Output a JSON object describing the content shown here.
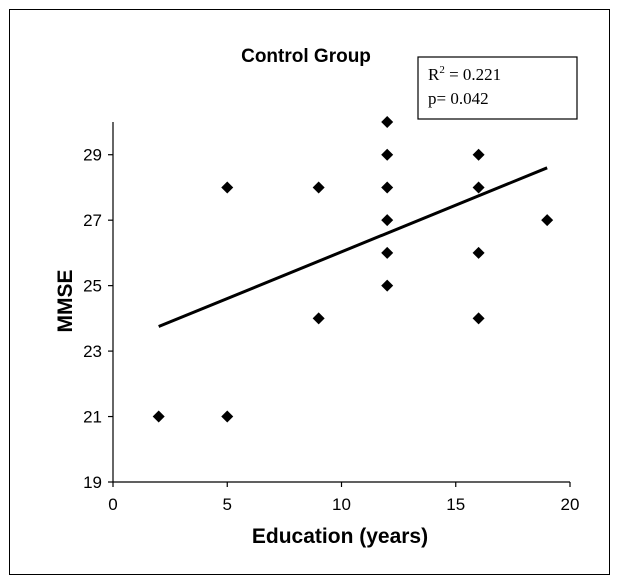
{
  "chart_data": {
    "type": "scatter",
    "title": "Control Group",
    "xlabel": "Education (years)",
    "ylabel": "MMSE",
    "xlim": [
      0,
      20
    ],
    "ylim": [
      19,
      30
    ],
    "xticks": [
      "0",
      "5",
      "10",
      "15",
      "20"
    ],
    "yticks": [
      "19",
      "21",
      "23",
      "25",
      "27",
      "29"
    ],
    "points": [
      {
        "x": 2,
        "y": 21
      },
      {
        "x": 5,
        "y": 21
      },
      {
        "x": 5,
        "y": 28
      },
      {
        "x": 9,
        "y": 28
      },
      {
        "x": 9,
        "y": 24
      },
      {
        "x": 12,
        "y": 30
      },
      {
        "x": 12,
        "y": 29
      },
      {
        "x": 12,
        "y": 28
      },
      {
        "x": 12,
        "y": 27
      },
      {
        "x": 12,
        "y": 26
      },
      {
        "x": 12,
        "y": 25
      },
      {
        "x": 16,
        "y": 29
      },
      {
        "x": 16,
        "y": 28
      },
      {
        "x": 16,
        "y": 26
      },
      {
        "x": 16,
        "y": 24
      },
      {
        "x": 19,
        "y": 27
      }
    ],
    "trendline": {
      "x": [
        2,
        19
      ],
      "y": [
        23.75,
        28.6
      ]
    },
    "annotation": {
      "r2_label": "R",
      "r2_exp": "2",
      "r2_value": " = 0.221",
      "p_text": "p= 0.042"
    },
    "grid": false,
    "marker_color": "#000000"
  }
}
